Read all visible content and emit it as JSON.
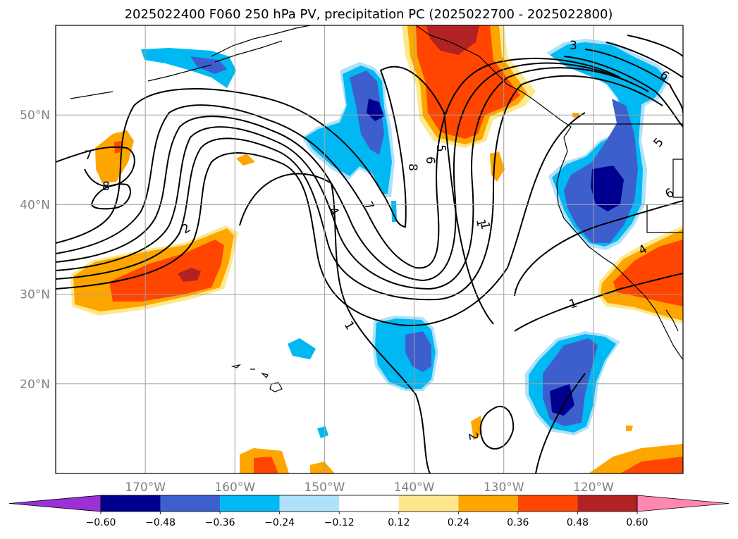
{
  "chart_data": {
    "type": "contour-map",
    "title": "2025022400 F060 250 hPa PV, precipitation PC (2025022700 - 2025022800)",
    "lat_ticks": [
      "50°N",
      "40°N",
      "30°N",
      "20°N"
    ],
    "lon_ticks": [
      "170°W",
      "160°W",
      "150°W",
      "140°W",
      "130°W",
      "120°W"
    ],
    "lat_values": [
      50,
      40,
      30,
      20
    ],
    "lon_values": [
      -170,
      -160,
      -150,
      -140,
      -130,
      -120
    ],
    "extent": {
      "lon": [
        -180,
        -110
      ],
      "lat": [
        10,
        60
      ]
    },
    "grid": true,
    "colorbar": {
      "extend": "both",
      "levels": [
        "−0.60",
        "−0.48",
        "−0.36",
        "−0.24",
        "−0.12",
        "0.12",
        "0.24",
        "0.36",
        "0.48",
        "0.60"
      ],
      "colors": [
        "#9b30d6",
        "#000090",
        "#3d5fce",
        "#00b9f2",
        "#afe1fa",
        "#ffffff",
        "#fde98b",
        "#ffa500",
        "#ff4500",
        "#b22222",
        "#ff87b2"
      ]
    },
    "contour_labels": [
      "1",
      "1",
      "1",
      "2",
      "4",
      "4",
      "5",
      "5",
      "6",
      "6",
      "7",
      "7",
      "8",
      "8",
      "3",
      "6",
      "2",
      "1"
    ],
    "fields": [
      "250 hPa PV (contours)",
      "precipitation PC (shaded)"
    ]
  }
}
